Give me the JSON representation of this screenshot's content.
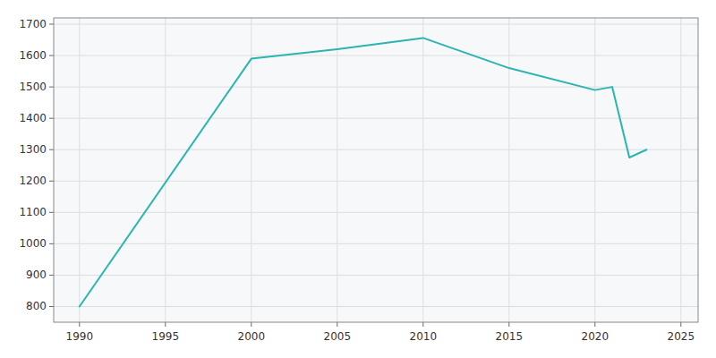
{
  "chart_data": {
    "type": "line",
    "x": [
      1990,
      2000,
      2005,
      2010,
      2015,
      2020,
      2021,
      2022,
      2023
    ],
    "values": [
      800,
      1590,
      1620,
      1656,
      1560,
      1490,
      1500,
      1275,
      1300
    ],
    "color": "#2ab5b0",
    "xlim": [
      1988.5,
      2026
    ],
    "ylim": [
      750,
      1720
    ],
    "xticks": [
      1990,
      1995,
      2000,
      2005,
      2010,
      2015,
      2020,
      2025
    ],
    "yticks": [
      800,
      900,
      1000,
      1100,
      1200,
      1300,
      1400,
      1500,
      1600,
      1700
    ],
    "grid": true
  }
}
